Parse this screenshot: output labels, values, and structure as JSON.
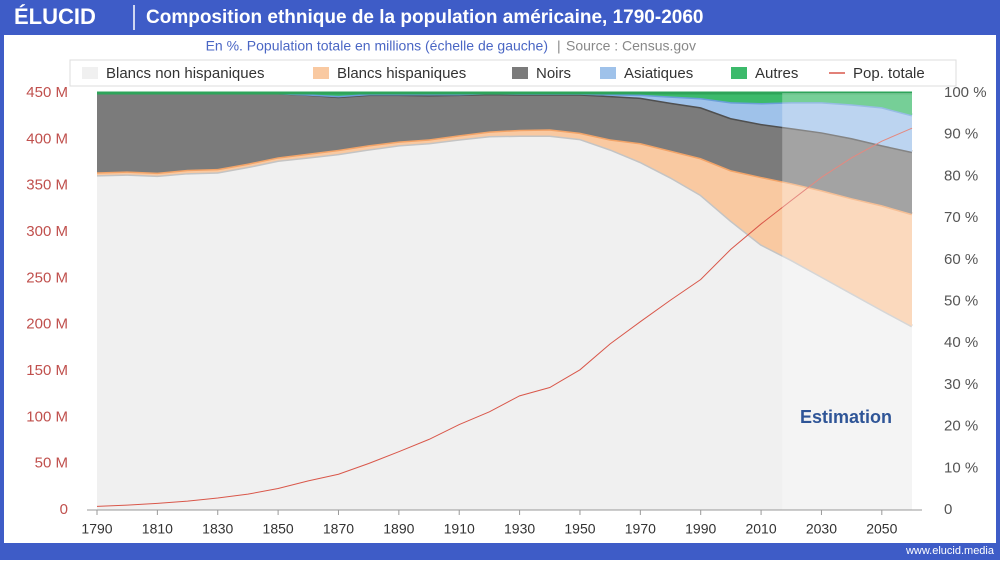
{
  "brand": "ÉLUCID",
  "footer": "www.elucid.media",
  "chart_data": {
    "type": "area",
    "title": "Composition ethnique de la population américaine, 1790-2060",
    "subtitle": "En %. Population totale en millions (échelle de gauche)",
    "source": "Source : Census.gov",
    "annotation": "Estimation",
    "estimation_start": 2017,
    "x": [
      1790,
      1800,
      1810,
      1820,
      1830,
      1840,
      1850,
      1860,
      1870,
      1880,
      1890,
      1900,
      1910,
      1920,
      1930,
      1940,
      1950,
      1960,
      1970,
      1980,
      1990,
      2000,
      2010,
      2020,
      2030,
      2040,
      2050,
      2060
    ],
    "series": [
      {
        "name": "Blancs non hispaniques",
        "color": "#f0f0f0",
        "edge": "#c4c4c4",
        "axis": "y2",
        "values": [
          80.3,
          80.5,
          80.2,
          80.8,
          81.0,
          82.3,
          83.8,
          84.6,
          85.4,
          86.5,
          87.5,
          88.0,
          88.9,
          89.7,
          89.8,
          89.8,
          89.0,
          86.5,
          83.5,
          79.8,
          75.6,
          69.4,
          63.7,
          60.0,
          56.0,
          52.0,
          48.0,
          44.1
        ]
      },
      {
        "name": "Blancs hispaniques",
        "color": "#f9c9a1",
        "edge": "#f3a468",
        "axis": "y2",
        "values": [
          0.7,
          0.7,
          0.7,
          0.8,
          0.8,
          0.8,
          0.8,
          0.9,
          1.0,
          1.0,
          0.9,
          0.9,
          1.0,
          1.1,
          1.4,
          1.5,
          1.5,
          2.4,
          4.5,
          6.4,
          8.8,
          12.1,
          16.2,
          18.4,
          20.7,
          22.8,
          25.1,
          26.9
        ]
      },
      {
        "name": "Noirs",
        "color": "#7b7b7b",
        "edge": "#4f4f4f",
        "axis": "y2",
        "values": [
          19.0,
          18.8,
          19.1,
          18.4,
          18.2,
          16.9,
          15.4,
          14.1,
          12.7,
          12.1,
          11.2,
          10.6,
          9.7,
          9.0,
          8.5,
          8.4,
          9.2,
          10.4,
          10.9,
          11.5,
          12.2,
          12.5,
          12.7,
          13.2,
          13.9,
          14.4,
          14.4,
          14.9
        ]
      },
      {
        "name": "Asiatiques",
        "color": "#9fc2ea",
        "edge": "#6a9fd8",
        "axis": "y2",
        "values": [
          0,
          0,
          0,
          0,
          0,
          0,
          0,
          0.1,
          0.2,
          0.2,
          0.2,
          0.3,
          0.2,
          0.2,
          0.2,
          0.2,
          0.2,
          0.4,
          0.7,
          1.5,
          2.2,
          3.8,
          5.0,
          6.2,
          7.2,
          8.1,
          9.1,
          8.8
        ]
      },
      {
        "name": "Autres",
        "color": "#3cba6b",
        "edge": "#2ea45a",
        "axis": "y2",
        "values": [
          0,
          0,
          0,
          0,
          0,
          0,
          0,
          0.3,
          0.7,
          0.2,
          0.2,
          0.2,
          0.2,
          0.0,
          0.1,
          0.1,
          0.1,
          0.3,
          0.4,
          0.8,
          1.2,
          2.2,
          2.4,
          2.2,
          2.2,
          2.7,
          3.4,
          5.3
        ]
      },
      {
        "name": "Pop. totale",
        "color": "#d9574a",
        "axis": "y",
        "line": true,
        "values": [
          3.9,
          5.3,
          7.2,
          9.6,
          12.9,
          17.1,
          23.2,
          31.4,
          38.6,
          50.2,
          62.9,
          76.2,
          92.2,
          106.0,
          123.2,
          132.2,
          151.3,
          179.3,
          203.2,
          226.5,
          248.7,
          281.4,
          308.7,
          334.0,
          359.0,
          380.0,
          398.0,
          412.0
        ]
      }
    ],
    "xlim": [
      1790,
      2060
    ],
    "xticks": [
      1790,
      1810,
      1830,
      1850,
      1870,
      1890,
      1910,
      1930,
      1950,
      1970,
      1990,
      2010,
      2030,
      2050
    ],
    "ylim": [
      0,
      450
    ],
    "yticks": [
      {
        "value": 0,
        "label": "0"
      },
      {
        "value": 50,
        "label": "50 M"
      },
      {
        "value": 100,
        "label": "100 M"
      },
      {
        "value": 150,
        "label": "150 M"
      },
      {
        "value": 200,
        "label": "200 M"
      },
      {
        "value": 250,
        "label": "250 M"
      },
      {
        "value": 300,
        "label": "300 M"
      },
      {
        "value": 350,
        "label": "350 M"
      },
      {
        "value": 400,
        "label": "400 M"
      },
      {
        "value": 450,
        "label": "450 M"
      }
    ],
    "y2lim": [
      0,
      100
    ],
    "y2ticks": [
      0,
      {
        "value": 10,
        "label": "10 %"
      },
      {
        "value": 20,
        "label": "20 %"
      },
      {
        "value": 30,
        "label": "30 %"
      },
      {
        "value": 40,
        "label": "40 %"
      },
      {
        "value": 50,
        "label": "50 %"
      },
      {
        "value": 60,
        "label": "60 %"
      },
      {
        "value": 70,
        "label": "70 %"
      },
      {
        "value": 80,
        "label": "80 %"
      },
      {
        "value": 90,
        "label": "90 %"
      },
      {
        "value": 100,
        "label": "100 %"
      }
    ],
    "stacked": true,
    "grid": false,
    "legend": "top"
  }
}
